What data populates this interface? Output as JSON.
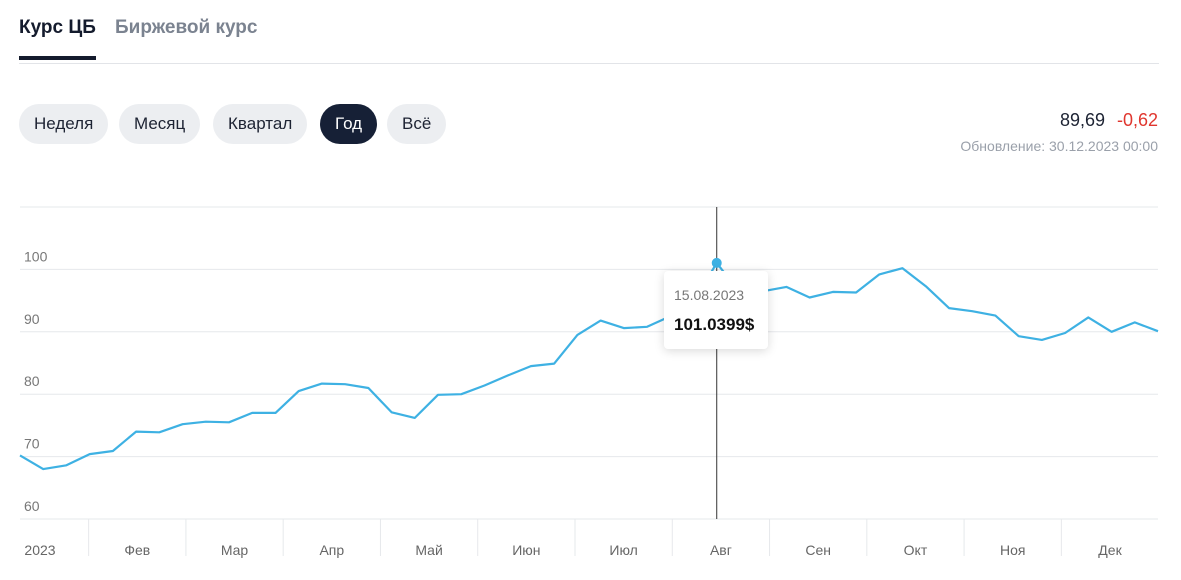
{
  "tabs": [
    {
      "label": "Курс ЦБ",
      "active": true
    },
    {
      "label": "Биржевой курс",
      "active": false
    }
  ],
  "periods": [
    {
      "label": "Неделя",
      "active": false
    },
    {
      "label": "Месяц",
      "active": false
    },
    {
      "label": "Квартал",
      "active": false
    },
    {
      "label": "Год",
      "active": true
    },
    {
      "label": "Всё",
      "active": false
    }
  ],
  "quote": {
    "price": "89,69",
    "change": "-0,62",
    "updated": "Обновление: 30.12.2023 00:00"
  },
  "chart_data": {
    "type": "line",
    "x_labels": [
      "2023",
      "Фев",
      "Мар",
      "Апр",
      "Май",
      "Июн",
      "Июл",
      "Авг",
      "Сен",
      "Окт",
      "Ноя",
      "Дек"
    ],
    "series": [
      {
        "color": "#3eb1e3",
        "values": [
          70.2,
          68.0,
          68.6,
          70.4,
          70.9,
          74.0,
          73.9,
          75.2,
          75.6,
          75.5,
          77.0,
          77.0,
          80.5,
          81.7,
          81.6,
          81.0,
          77.1,
          76.2,
          79.9,
          80.0,
          81.4,
          83.0,
          84.5,
          84.9,
          89.5,
          91.8,
          90.6,
          90.8,
          92.5,
          94.7,
          101.0399,
          96.2,
          96.5,
          97.2,
          95.5,
          96.4,
          96.3,
          99.2,
          100.2,
          97.3,
          93.8,
          93.3,
          92.6,
          89.3,
          88.7,
          89.8,
          92.3,
          90.0,
          91.5,
          90.1
        ]
      }
    ],
    "ylim": [
      60,
      110
    ],
    "yticks": [
      60,
      70,
      80,
      90,
      100
    ],
    "grid": true,
    "tooltip": {
      "date": "15.08.2023",
      "value": 101.0399,
      "label": "101.0399$"
    }
  }
}
